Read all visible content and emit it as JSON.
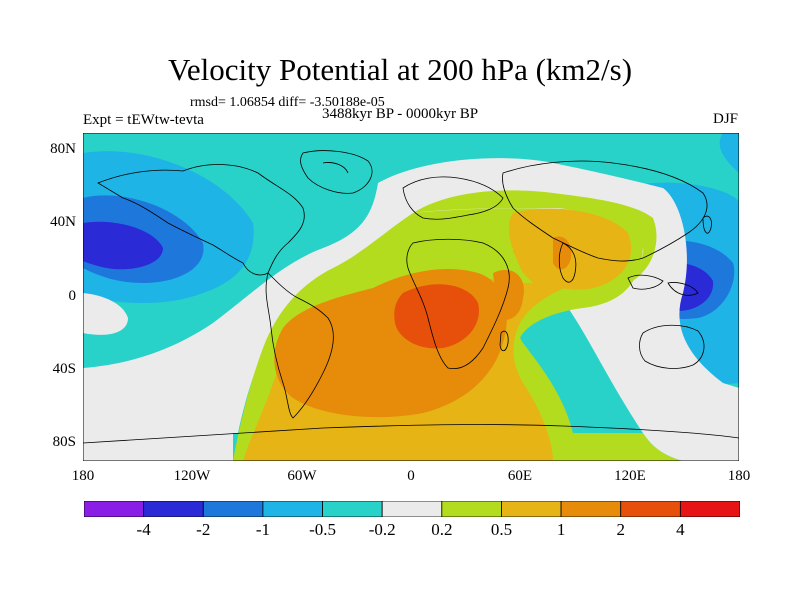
{
  "title": "Velocity Potential at 200 hPa (km2/s)",
  "stats": "rmsd= 1.06854 diff= -3.50188e-05",
  "experiment": "Expt = tEWtw-tevta",
  "period": "3488kyr BP - 0000kyr BP",
  "season": "DJF",
  "lat_ticks": [
    "80N",
    "40N",
    "0",
    "40S",
    "80S"
  ],
  "lon_ticks": [
    "180",
    "120W",
    "60W",
    "0",
    "60E",
    "120E",
    "180"
  ],
  "colorbar": {
    "colors": [
      "#8a1ee6",
      "#2a2ad6",
      "#1e78dc",
      "#1eb4e6",
      "#28d2c8",
      "#ebebeb",
      "#b4dc1e",
      "#e6b414",
      "#e68c0a",
      "#e6500a",
      "#e61414"
    ],
    "labels": [
      "-4",
      "-2",
      "-1",
      "-0.5",
      "-0.2",
      "0.2",
      "0.5",
      "1",
      "2",
      "4"
    ]
  }
}
